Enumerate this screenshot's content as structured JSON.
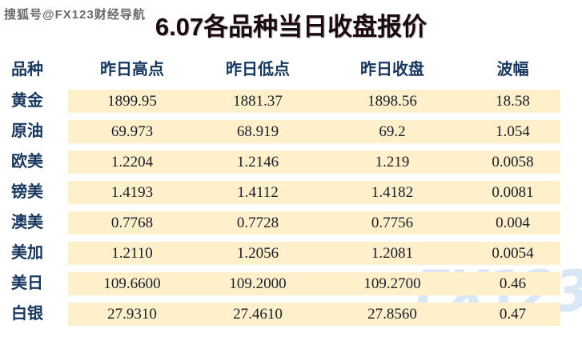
{
  "watermark_top": "搜狐号@FX123财经导航",
  "watermark_bottom": "FX123",
  "title": "6.07各品种当日收盘报价",
  "colors": {
    "header_text": "#17375e",
    "label_text": "#17375e",
    "cell_background": "#fdf0cb",
    "title_text": "#1c0b0b",
    "watermark_bottom_text": "#d9e6f5",
    "page_background": "#ffffff"
  },
  "chart_data": {
    "type": "table",
    "title": "6.07各品种当日收盘报价",
    "headers": [
      "品种",
      "昨日高点",
      "昨日低点",
      "昨日收盘",
      "波幅"
    ],
    "rows": [
      [
        "黄金",
        "1899.95",
        "1881.37",
        "1898.56",
        "18.58"
      ],
      [
        "原油",
        "69.973",
        "68.919",
        "69.2",
        "1.054"
      ],
      [
        "欧美",
        "1.2204",
        "1.2146",
        "1.219",
        "0.0058"
      ],
      [
        "镑美",
        "1.4193",
        "1.4112",
        "1.4182",
        "0.0081"
      ],
      [
        "澳美",
        "0.7768",
        "0.7728",
        "0.7756",
        "0.004"
      ],
      [
        "美加",
        "1.2110",
        "1.2056",
        "1.2081",
        "0.0054"
      ],
      [
        "美日",
        "109.6600",
        "109.2000",
        "109.2700",
        "0.46"
      ],
      [
        "白银",
        "27.9310",
        "27.4610",
        "27.8560",
        "0.47"
      ]
    ]
  }
}
